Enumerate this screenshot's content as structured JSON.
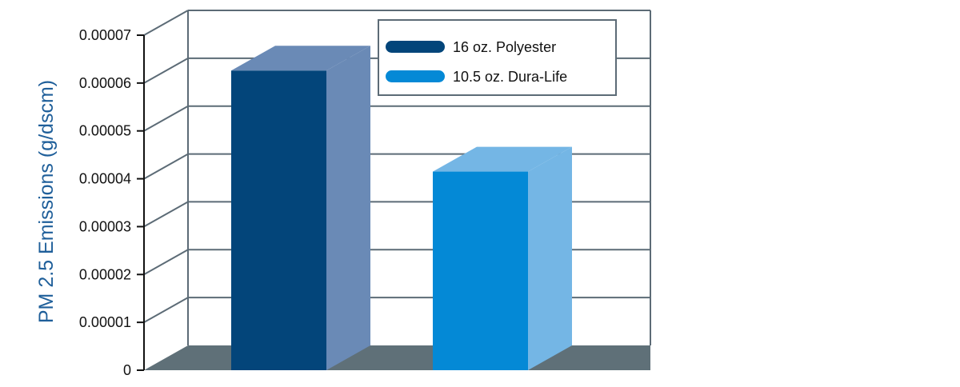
{
  "chart_data": {
    "type": "bar",
    "style": "3d",
    "title": "",
    "xlabel": "",
    "ylabel": "PM 2.5 Emissions (g/dscm)",
    "ylim": [
      0,
      7e-05
    ],
    "yticks": [
      {
        "value": 0,
        "label": "0"
      },
      {
        "value": 1e-05,
        "label": "0.00001"
      },
      {
        "value": 2e-05,
        "label": "0.00002"
      },
      {
        "value": 3e-05,
        "label": "0.00003"
      },
      {
        "value": 4e-05,
        "label": "0.00004"
      },
      {
        "value": 5e-05,
        "label": "0.00005"
      },
      {
        "value": 6e-05,
        "label": "0.00006"
      },
      {
        "value": 7e-05,
        "label": "0.00007"
      }
    ],
    "grid": true,
    "legend_position": "top-right",
    "series": [
      {
        "name": "16 oz. Polyester",
        "value": 6.26e-05,
        "color": "#03457a",
        "side_color": "#6a8ab6"
      },
      {
        "name": "10.5 oz. Dura-Life",
        "value": 4.15e-05,
        "color": "#0489d6",
        "side_color": "#74b6e5"
      }
    ],
    "floor_color": "#5f7078",
    "grid_color": "#5c6b76"
  }
}
